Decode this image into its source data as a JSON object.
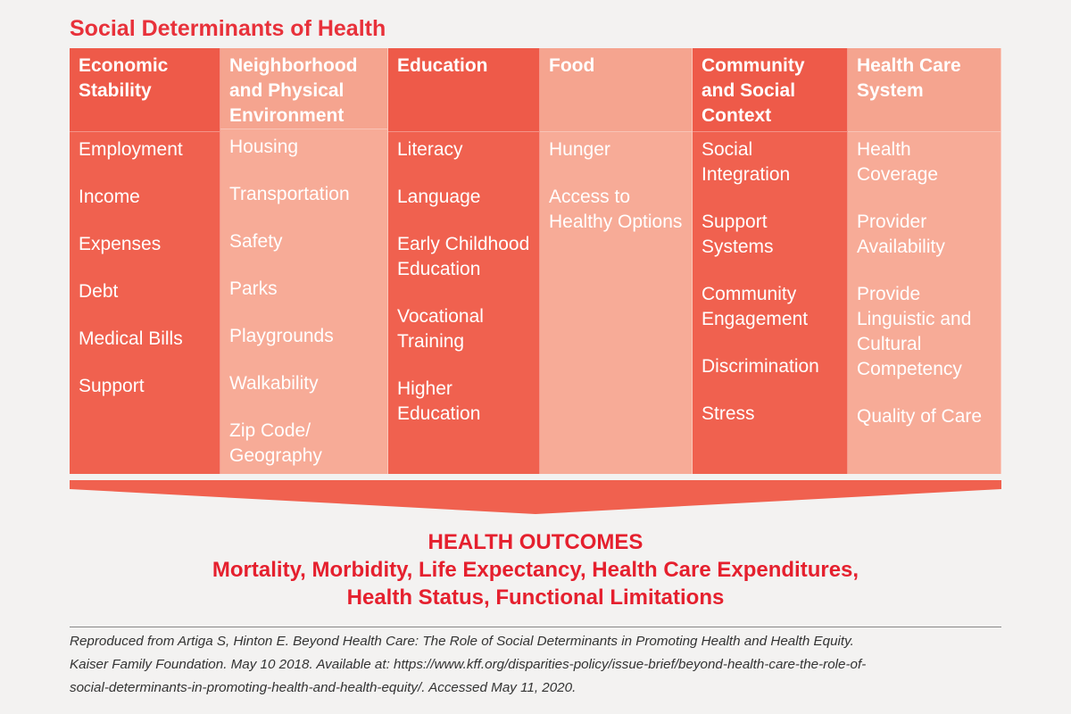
{
  "title": "Social Determinants of Health",
  "columns": [
    {
      "header": "Economic Stability",
      "items": [
        "Employment",
        "Income",
        "Expenses",
        "Debt",
        "Medical Bills",
        "Support"
      ]
    },
    {
      "header": "Neighborhood and Physical Environment",
      "items": [
        "Housing",
        "Transportation",
        "Safety",
        "Parks",
        "Playgrounds",
        "Walkability",
        "Zip Code/ Geography"
      ]
    },
    {
      "header": "Education",
      "items": [
        "Literacy",
        "Language",
        "Early Childhood Education",
        "Vocational Training",
        "Higher Education"
      ]
    },
    {
      "header": "Food",
      "items": [
        "Hunger",
        "Access to Healthy Options"
      ]
    },
    {
      "header": "Community and Social Context",
      "items": [
        "Social Integration",
        "Support Systems",
        "Community Engagement",
        "Discrimination",
        "Stress"
      ]
    },
    {
      "header": "Health Care System",
      "items": [
        "Health Coverage",
        "Provider Availability",
        "Provide Linguistic and Cultural Competency",
        "Quality of Care"
      ]
    }
  ],
  "outcomes": {
    "title": "HEALTH OUTCOMES",
    "lines": [
      "Mortality, Morbidity, Life Expectancy, Health Care Expenditures,",
      "Health Status, Functional Limitations"
    ]
  },
  "citation": [
    "Reproduced from Artiga S, Hinton E. Beyond Health Care: The Role of Social Determinants in Promoting Health and Health Equity.",
    "Kaiser Family Foundation. May 10 2018. Available at: https://www.kff.org/disparities-policy/issue-brief/beyond-health-care-the-role-of-",
    "social-determinants-in-promoting-health-and-health-equity/. Accessed May 11, 2020."
  ]
}
